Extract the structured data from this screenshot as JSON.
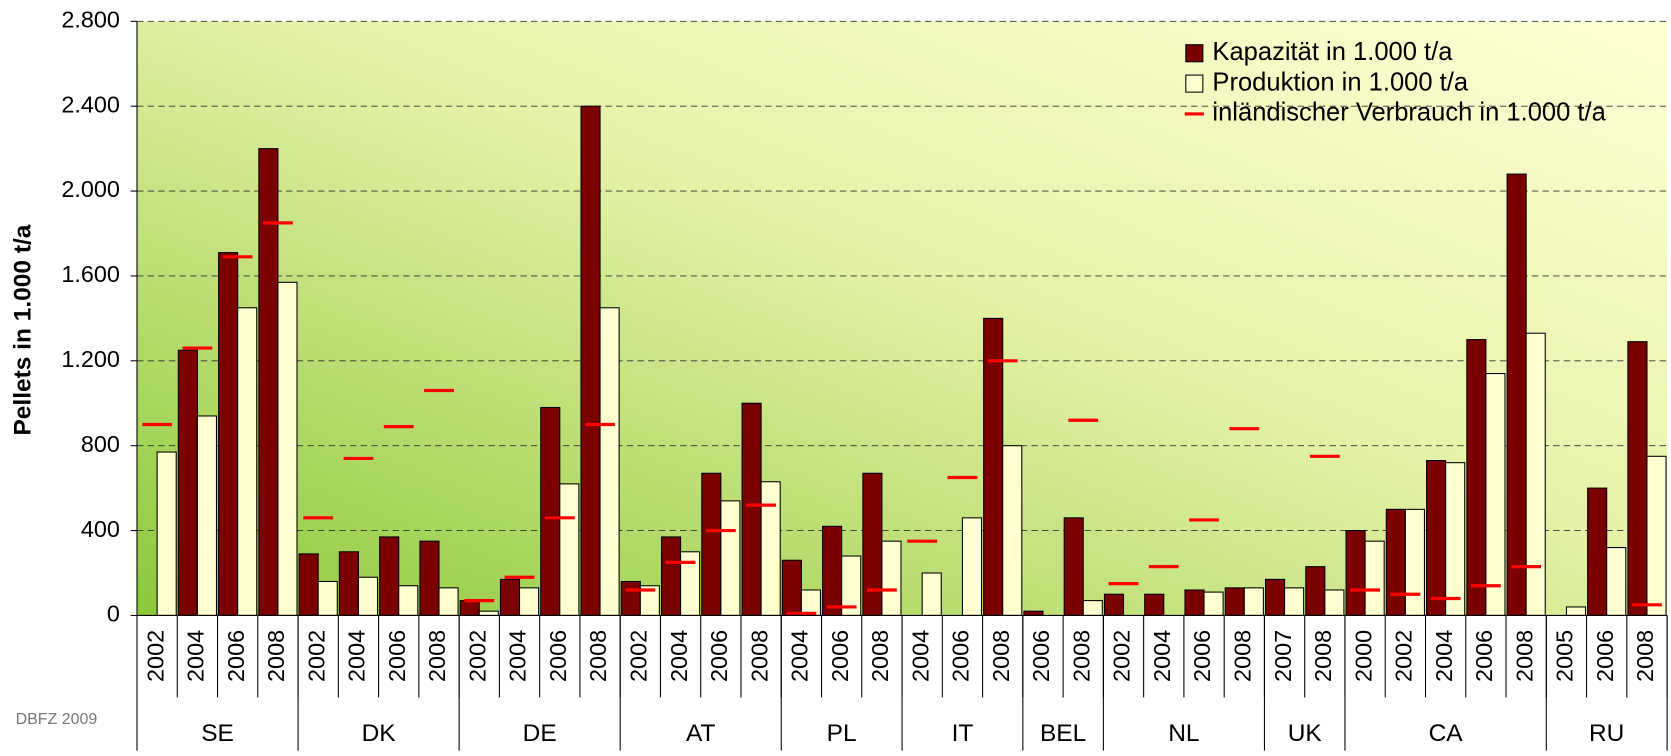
{
  "chart_data": {
    "type": "bar",
    "y_label": "Pellets in 1.000 t/a",
    "source": "DBFZ 2009",
    "groups": [
      {
        "name": "SE",
        "years": [
          "2002",
          "2004",
          "2006",
          "2008"
        ]
      },
      {
        "name": "DK",
        "years": [
          "2002",
          "2004",
          "2006",
          "2008"
        ]
      },
      {
        "name": "DE",
        "years": [
          "2002",
          "2004",
          "2006",
          "2008"
        ]
      },
      {
        "name": "AT",
        "years": [
          "2002",
          "2004",
          "2006",
          "2008"
        ]
      },
      {
        "name": "PL",
        "years": [
          "2004",
          "2006",
          "2008"
        ]
      },
      {
        "name": "IT",
        "years": [
          "2004",
          "2006",
          "2008"
        ]
      },
      {
        "name": "BEL",
        "years": [
          "2006",
          "2008"
        ]
      },
      {
        "name": "NL",
        "years": [
          "2002",
          "2004",
          "2006",
          "2008"
        ]
      },
      {
        "name": "UK",
        "years": [
          "2007",
          "2008"
        ]
      },
      {
        "name": "CA",
        "years": [
          "2000",
          "2002",
          "2004",
          "2006",
          "2008"
        ]
      },
      {
        "name": "RU",
        "years": [
          "2005",
          "2006",
          "2008"
        ]
      }
    ],
    "series": [
      {
        "name": "Kapazität in 1.000 t/a",
        "style": "bar",
        "color": "#7b0000",
        "values": [
          null,
          1250,
          1710,
          2200,
          290,
          300,
          370,
          350,
          70,
          170,
          980,
          2400,
          160,
          370,
          670,
          1000,
          260,
          420,
          670,
          null,
          null,
          1400,
          20,
          460,
          100,
          100,
          120,
          130,
          170,
          230,
          400,
          500,
          730,
          1300,
          2080,
          null,
          600,
          1290
        ]
      },
      {
        "name": "Produktion in 1.000 t/a",
        "style": "bar",
        "color": "#ffffd0",
        "values": [
          770,
          940,
          1450,
          1570,
          160,
          180,
          140,
          130,
          20,
          130,
          620,
          1450,
          140,
          300,
          540,
          630,
          120,
          280,
          350,
          200,
          460,
          800,
          null,
          70,
          null,
          null,
          110,
          130,
          130,
          120,
          350,
          500,
          720,
          1140,
          1330,
          40,
          320,
          750
        ]
      },
      {
        "name": "inländischer Verbrauch in 1.000 t/a",
        "style": "dash",
        "color": "#ff0000",
        "values": [
          900,
          1260,
          1690,
          1850,
          460,
          740,
          890,
          1060,
          70,
          180,
          460,
          900,
          120,
          250,
          400,
          520,
          10,
          40,
          120,
          350,
          650,
          1200,
          null,
          920,
          150,
          230,
          450,
          880,
          null,
          750,
          120,
          100,
          80,
          140,
          230,
          null,
          null,
          50
        ]
      }
    ],
    "ylim": [
      0,
      2800
    ],
    "yticks": [
      0,
      {
        "value": 400,
        "label": "400"
      },
      {
        "value": 800,
        "label": "800"
      },
      {
        "value": 1200,
        "label": "1.200"
      },
      {
        "value": 1600,
        "label": "1.600"
      },
      {
        "value": 2000,
        "label": "2.000"
      },
      {
        "value": 2400,
        "label": "2.400"
      },
      {
        "value": 2800,
        "label": "2.800"
      }
    ],
    "grid": true,
    "legend": "top-right"
  }
}
